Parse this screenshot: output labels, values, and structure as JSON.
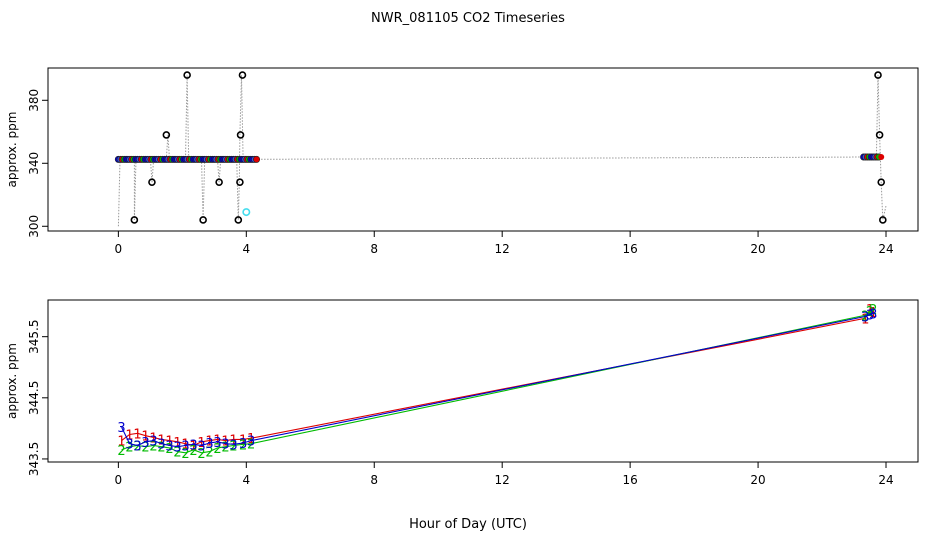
{
  "title": "NWR_081105  CO2 Timeseries",
  "xlabel": "Hour of Day (UTC)",
  "colors": {
    "axis": "#000000",
    "trace": "#999999",
    "s1": "#dd0000",
    "s2": "#00bb00",
    "s3": "#0000cc",
    "cyan": "#44ddee"
  },
  "chart_data": [
    {
      "type": "scatter",
      "name": "top-panel",
      "ylabel": "approx. ppm",
      "xlim": [
        -2.2,
        25.0
      ],
      "ylim": [
        297.0,
        400.5
      ],
      "xticks": [
        0,
        4,
        8,
        12,
        16,
        20,
        24
      ],
      "xtick_labels": [
        "0",
        "4",
        "8",
        "12",
        "16",
        "20",
        "24"
      ],
      "yticks": [
        300,
        340,
        380
      ],
      "ytick_labels": [
        "300",
        "340",
        "380"
      ],
      "trace": [
        [
          0.0,
          300.0
        ],
        [
          0.05,
          342.5
        ],
        [
          0.3,
          342.5
        ],
        [
          0.5,
          342.5
        ],
        [
          0.5,
          304
        ],
        [
          0.55,
          342.5
        ],
        [
          1.0,
          342.5
        ],
        [
          1.05,
          328
        ],
        [
          1.1,
          342.5
        ],
        [
          1.5,
          342.5
        ],
        [
          1.55,
          358
        ],
        [
          1.6,
          342.5
        ],
        [
          2.1,
          342.5
        ],
        [
          2.15,
          396
        ],
        [
          2.2,
          342.5
        ],
        [
          2.6,
          342.5
        ],
        [
          2.65,
          304
        ],
        [
          2.7,
          342.5
        ],
        [
          3.1,
          342.5
        ],
        [
          3.15,
          328
        ],
        [
          3.2,
          342.5
        ],
        [
          3.7,
          342.5
        ],
        [
          3.75,
          304
        ],
        [
          3.78,
          328
        ],
        [
          3.8,
          358
        ],
        [
          3.85,
          396
        ],
        [
          3.9,
          342.5
        ],
        [
          4.3,
          342.5
        ],
        [
          8.0,
          342.8
        ],
        [
          12.0,
          343.1
        ],
        [
          16.0,
          343.4
        ],
        [
          20.0,
          343.7
        ],
        [
          23.35,
          344.0
        ],
        [
          23.7,
          344.0
        ],
        [
          23.75,
          396
        ],
        [
          23.8,
          358
        ],
        [
          23.85,
          328
        ],
        [
          23.9,
          304
        ],
        [
          24.0,
          313
        ]
      ],
      "circles_black": [
        [
          0.5,
          304
        ],
        [
          1.05,
          328
        ],
        [
          1.5,
          358
        ],
        [
          2.15,
          396
        ],
        [
          2.65,
          304
        ],
        [
          3.15,
          328
        ],
        [
          3.75,
          304
        ],
        [
          3.8,
          328
        ],
        [
          3.82,
          358
        ],
        [
          3.88,
          396
        ],
        [
          23.75,
          396
        ],
        [
          23.8,
          358
        ],
        [
          23.85,
          328
        ],
        [
          23.9,
          304
        ]
      ],
      "circles_cyan": [
        [
          4.0,
          309
        ]
      ],
      "band": {
        "x_start": 0.0,
        "x_end": 4.35,
        "y": 342.5,
        "x2_start": 23.3,
        "x2_end": 23.8,
        "y2": 344.0
      }
    },
    {
      "type": "line",
      "name": "bottom-panel",
      "ylabel": "approx. ppm",
      "xlim": [
        -2.2,
        25.0
      ],
      "ylim": [
        343.45,
        346.1
      ],
      "xticks": [
        0,
        4,
        8,
        12,
        16,
        20,
        24
      ],
      "xtick_labels": [
        "0",
        "4",
        "8",
        "12",
        "16",
        "20",
        "24"
      ],
      "yticks": [
        343.5,
        344.5,
        345.5
      ],
      "ytick_labels": [
        "343.5",
        "344.5",
        "345.5"
      ],
      "series": [
        {
          "label": "1",
          "color": "#dd0000",
          "points": [
            [
              0.1,
              343.8
            ],
            [
              0.35,
              343.9
            ],
            [
              0.6,
              343.92
            ],
            [
              0.85,
              343.88
            ],
            [
              1.1,
              343.85
            ],
            [
              1.35,
              343.82
            ],
            [
              1.6,
              343.8
            ],
            [
              1.85,
              343.78
            ],
            [
              2.1,
              343.75
            ],
            [
              2.35,
              343.72
            ],
            [
              2.6,
              343.78
            ],
            [
              2.85,
              343.8
            ],
            [
              3.1,
              343.82
            ],
            [
              3.35,
              343.8
            ],
            [
              3.6,
              343.82
            ],
            [
              3.9,
              343.82
            ],
            [
              4.15,
              343.84
            ],
            [
              23.35,
              345.8
            ],
            [
              23.5,
              345.95
            ],
            [
              23.6,
              345.9
            ]
          ]
        },
        {
          "label": "2",
          "color": "#00bb00",
          "points": [
            [
              0.1,
              343.65
            ],
            [
              0.35,
              343.7
            ],
            [
              0.6,
              343.72
            ],
            [
              0.85,
              343.7
            ],
            [
              1.1,
              343.72
            ],
            [
              1.35,
              343.7
            ],
            [
              1.6,
              343.68
            ],
            [
              1.85,
              343.62
            ],
            [
              2.1,
              343.6
            ],
            [
              2.35,
              343.65
            ],
            [
              2.6,
              343.6
            ],
            [
              2.85,
              343.62
            ],
            [
              3.1,
              343.68
            ],
            [
              3.35,
              343.7
            ],
            [
              3.6,
              343.72
            ],
            [
              3.9,
              343.74
            ],
            [
              4.15,
              343.75
            ],
            [
              23.35,
              345.85
            ],
            [
              23.5,
              345.92
            ],
            [
              23.6,
              345.95
            ]
          ]
        },
        {
          "label": "3",
          "color": "#0000cc",
          "points": [
            [
              0.1,
              344.02
            ],
            [
              0.35,
              343.75
            ],
            [
              0.6,
              343.72
            ],
            [
              0.85,
              343.78
            ],
            [
              1.1,
              343.8
            ],
            [
              1.35,
              343.75
            ],
            [
              1.6,
              343.72
            ],
            [
              1.85,
              343.7
            ],
            [
              2.1,
              343.72
            ],
            [
              2.35,
              343.74
            ],
            [
              2.6,
              343.72
            ],
            [
              2.85,
              343.76
            ],
            [
              3.1,
              343.78
            ],
            [
              3.35,
              343.75
            ],
            [
              3.6,
              343.74
            ],
            [
              3.9,
              343.76
            ],
            [
              4.15,
              343.8
            ],
            [
              23.35,
              345.83
            ],
            [
              23.5,
              345.86
            ],
            [
              23.6,
              345.88
            ]
          ]
        }
      ]
    }
  ]
}
